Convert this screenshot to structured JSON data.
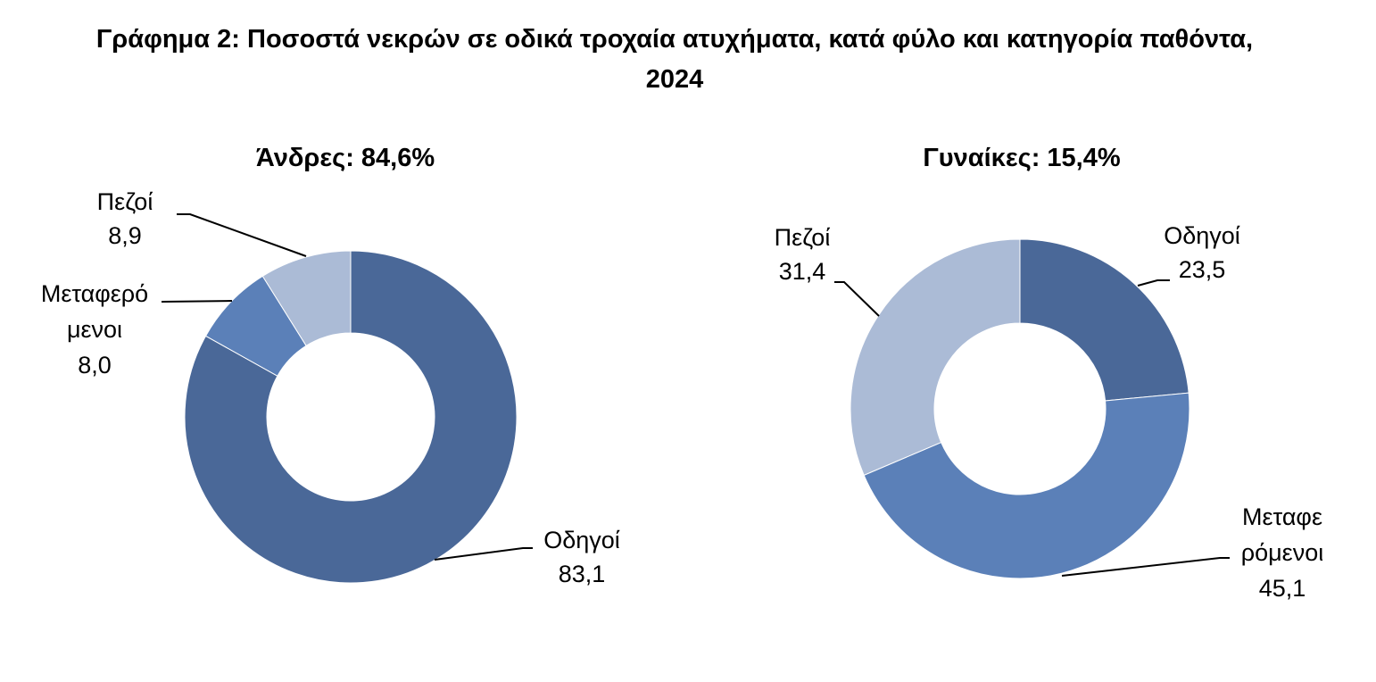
{
  "title_line1": "Γράφημα 2: Ποσοστά νεκρών σε οδικά τροχαία ατυχήματα, κατά φύλο και κατηγορία παθόντα,",
  "title_line2": "2024",
  "colors": {
    "Οδηγοί": "#4a6898",
    "Μεταφερόμενοι": "#5b80b8",
    "Πεζοί": "#abbbd6"
  },
  "chart_data": [
    {
      "type": "pie",
      "variant": "doughnut",
      "title": "Άνδρες: 84,6%",
      "categories": [
        "Οδηγοί",
        "Μεταφερόμενοι",
        "Πεζοί"
      ],
      "values": [
        83.1,
        8.0,
        8.9
      ],
      "value_labels": [
        "83,1",
        "8,0",
        "8,9"
      ],
      "label_lines": [
        [
          "Οδηγοί",
          "83,1"
        ],
        [
          "Μεταφερό",
          "μενοι",
          "8,0"
        ],
        [
          "Πεζοί",
          "8,9"
        ]
      ]
    },
    {
      "type": "pie",
      "variant": "doughnut",
      "title": "Γυναίκες: 15,4%",
      "categories": [
        "Οδηγοί",
        "Μεταφερόμενοι",
        "Πεζοί"
      ],
      "values": [
        23.5,
        45.1,
        31.4
      ],
      "value_labels": [
        "23,5",
        "45,1",
        "31,4"
      ],
      "label_lines": [
        [
          "Οδηγοί",
          "23,5"
        ],
        [
          "Μεταφε",
          "ρόμενοι",
          "45,1"
        ],
        [
          "Πεζοί",
          "31,4"
        ]
      ]
    }
  ]
}
